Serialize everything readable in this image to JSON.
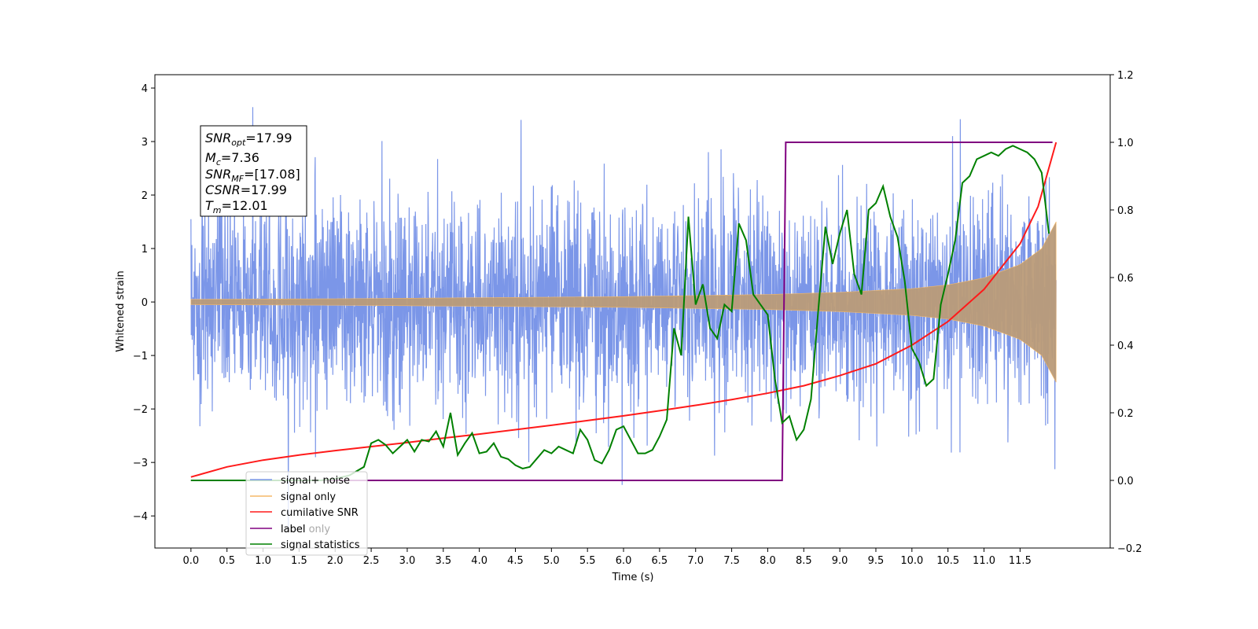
{
  "chart_data": {
    "type": "line",
    "xlabel": "Time (s)",
    "ylabel": "Whitened strain",
    "xlim": [
      -0.5,
      12.75
    ],
    "ylim_left": [
      -4.6,
      4.25
    ],
    "ylim_right": [
      -0.2,
      1.2
    ],
    "x_ticks": [
      "0.0",
      "0.5",
      "1.0",
      "1.5",
      "2.0",
      "2.5",
      "3.0",
      "3.5",
      "4.0",
      "4.5",
      "5.0",
      "5.5",
      "6.0",
      "6.5",
      "7.0",
      "7.5",
      "8.0",
      "8.5",
      "9.0",
      "9.5",
      "10.0",
      "10.5",
      "11.0",
      "11.5"
    ],
    "y_left_ticks": [
      "4",
      "3",
      "2",
      "1",
      "0",
      "−1",
      "−2",
      "−3",
      "−4"
    ],
    "y_right_ticks": [
      "1.2",
      "1.0",
      "0.8",
      "0.6",
      "0.4",
      "0.2",
      "0.0",
      "−0.2"
    ],
    "grid": false,
    "legend_position": "lower-left",
    "legend": [
      "signal+ noise",
      "signal only",
      "cumilative SNR",
      "label",
      "signal statistics",
      "label only"
    ],
    "colors": {
      "noise": "#7b96e8",
      "signal": "#f5b968",
      "overlap": "#bb9b78",
      "snr": "#ff1a1a",
      "label": "#800080",
      "stats": "#008000"
    },
    "annotation": {
      "snr_opt_label": "SNR",
      "snr_opt_sub": "opt",
      "snr_opt_value": "=17.99",
      "mc_label": "M",
      "mc_sub": "c",
      "mc_value": "=7.36",
      "snr_mf_label": "SNR",
      "snr_mf_sub": "MF",
      "snr_mf_value": "=[17.08]",
      "csnr_label": "CSNR",
      "csnr_value": "=17.99",
      "tm_label": "T",
      "tm_sub": "m",
      "tm_value": "=12.01"
    },
    "series": [
      {
        "name": "signal+ noise",
        "axis": "left",
        "description_values": {
          "t_start": 0.0,
          "t_end": 12.0,
          "noise_sigma": 1.0,
          "max_peak": 3.85,
          "min_trough": -4.25
        }
      },
      {
        "name": "signal only",
        "axis": "left",
        "envelope": {
          "t": [
            0,
            2,
            4,
            6,
            8,
            9,
            10,
            10.5,
            11,
            11.5,
            11.8,
            12.0
          ],
          "amp": [
            0.05,
            0.06,
            0.08,
            0.1,
            0.14,
            0.18,
            0.25,
            0.32,
            0.45,
            0.7,
            1.0,
            1.5
          ]
        }
      },
      {
        "name": "cumilative SNR",
        "axis": "right",
        "x": [
          0.0,
          0.5,
          1.0,
          1.5,
          2.0,
          2.5,
          3.0,
          3.5,
          4.0,
          4.5,
          5.0,
          5.5,
          6.0,
          6.5,
          7.0,
          7.5,
          8.0,
          8.5,
          9.0,
          9.5,
          10.0,
          10.5,
          11.0,
          11.5,
          11.75,
          12.0
        ],
        "y": [
          0.01,
          0.04,
          0.06,
          0.075,
          0.088,
          0.1,
          0.112,
          0.125,
          0.137,
          0.15,
          0.163,
          0.177,
          0.191,
          0.206,
          0.222,
          0.239,
          0.258,
          0.28,
          0.31,
          0.345,
          0.4,
          0.47,
          0.565,
          0.7,
          0.81,
          1.0
        ]
      },
      {
        "name": "label",
        "axis": "right",
        "x": [
          0.0,
          8.2,
          8.25,
          11.95
        ],
        "y": [
          0.0,
          0.0,
          1.0,
          1.0
        ]
      },
      {
        "name": "signal statistics",
        "axis": "right",
        "x": [
          0.0,
          0.2,
          0.4,
          0.6,
          0.8,
          1.0,
          1.2,
          1.4,
          1.6,
          1.8,
          2.0,
          2.2,
          2.4,
          2.5,
          2.6,
          2.7,
          2.8,
          2.9,
          3.0,
          3.1,
          3.2,
          3.3,
          3.4,
          3.5,
          3.6,
          3.7,
          3.8,
          3.9,
          4.0,
          4.1,
          4.2,
          4.3,
          4.4,
          4.5,
          4.6,
          4.7,
          4.8,
          4.9,
          5.0,
          5.1,
          5.2,
          5.3,
          5.4,
          5.5,
          5.6,
          5.7,
          5.8,
          5.9,
          6.0,
          6.1,
          6.2,
          6.3,
          6.4,
          6.5,
          6.6,
          6.7,
          6.8,
          6.9,
          7.0,
          7.1,
          7.2,
          7.3,
          7.4,
          7.5,
          7.6,
          7.7,
          7.8,
          7.9,
          8.0,
          8.1,
          8.2,
          8.3,
          8.4,
          8.5,
          8.6,
          8.7,
          8.8,
          8.9,
          9.0,
          9.1,
          9.2,
          9.3,
          9.4,
          9.5,
          9.6,
          9.7,
          9.8,
          9.9,
          10.0,
          10.1,
          10.2,
          10.3,
          10.4,
          10.5,
          10.6,
          10.7,
          10.8,
          10.9,
          11.0,
          11.1,
          11.2,
          11.3,
          11.4,
          11.5,
          11.6,
          11.7,
          11.8,
          11.9
        ],
        "y": [
          0.0,
          0.0,
          0.0,
          0.0,
          0.0,
          0.0,
          0.0,
          0.0,
          0.0,
          0.0,
          0.005,
          0.015,
          0.04,
          0.11,
          0.12,
          0.105,
          0.08,
          0.1,
          0.12,
          0.085,
          0.12,
          0.115,
          0.145,
          0.1,
          0.2,
          0.075,
          0.11,
          0.14,
          0.08,
          0.085,
          0.11,
          0.07,
          0.063,
          0.045,
          0.035,
          0.04,
          0.065,
          0.09,
          0.08,
          0.1,
          0.09,
          0.08,
          0.15,
          0.12,
          0.06,
          0.05,
          0.09,
          0.15,
          0.16,
          0.12,
          0.08,
          0.08,
          0.09,
          0.13,
          0.18,
          0.45,
          0.37,
          0.78,
          0.52,
          0.58,
          0.45,
          0.42,
          0.52,
          0.5,
          0.76,
          0.71,
          0.55,
          0.52,
          0.49,
          0.3,
          0.17,
          0.19,
          0.12,
          0.15,
          0.24,
          0.5,
          0.75,
          0.64,
          0.73,
          0.8,
          0.61,
          0.55,
          0.8,
          0.82,
          0.87,
          0.78,
          0.72,
          0.59,
          0.39,
          0.35,
          0.28,
          0.3,
          0.52,
          0.61,
          0.71,
          0.88,
          0.9,
          0.95,
          0.96,
          0.97,
          0.96,
          0.98,
          0.99,
          0.98,
          0.97,
          0.95,
          0.91,
          0.73
        ]
      }
    ]
  }
}
